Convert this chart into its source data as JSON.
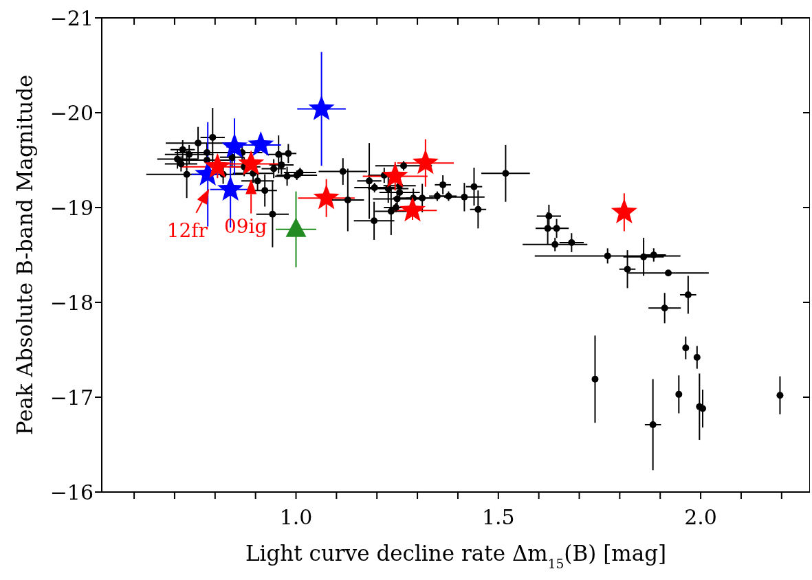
{
  "chart_data": {
    "type": "scatter",
    "xlabel": "Light curve decline rate Δm$_{15}$(B) [mag]",
    "ylabel": "Peak Absolute B-band Magnitude",
    "xlim": [
      0.52,
      2.27
    ],
    "ylim": [
      -16,
      -21
    ],
    "xticks": [
      {
        "value": 0.6,
        "label": null
      },
      {
        "value": 0.7,
        "label": null
      },
      {
        "value": 0.8,
        "label": null
      },
      {
        "value": 0.9,
        "label": null
      },
      {
        "value": 1.0,
        "label": "1.0"
      },
      {
        "value": 1.1,
        "label": null
      },
      {
        "value": 1.2,
        "label": null
      },
      {
        "value": 1.3,
        "label": null
      },
      {
        "value": 1.4,
        "label": null
      },
      {
        "value": 1.5,
        "label": "1.5"
      },
      {
        "value": 1.6,
        "label": null
      },
      {
        "value": 1.7,
        "label": null
      },
      {
        "value": 1.8,
        "label": null
      },
      {
        "value": 1.9,
        "label": null
      },
      {
        "value": 2.0,
        "label": "2.0"
      },
      {
        "value": 2.1,
        "label": null
      },
      {
        "value": 2.2,
        "label": null
      }
    ],
    "yticks": [
      {
        "value": -21,
        "label": "−21"
      },
      {
        "value": -20,
        "label": "−20"
      },
      {
        "value": -19,
        "label": "−19"
      },
      {
        "value": -18,
        "label": "−18"
      },
      {
        "value": -17,
        "label": "−17"
      },
      {
        "value": -16,
        "label": "−16"
      }
    ],
    "series": [
      {
        "color": "#000000",
        "marker": "circle",
        "x": [
          0.794,
          0.758,
          0.72,
          0.736,
          0.707,
          0.716,
          0.78,
          0.78,
          0.73,
          0.842,
          0.867,
          0.872,
          0.894,
          0.905,
          0.923,
          0.942,
          0.957,
          0.981,
          0.945,
          0.964,
          0.978,
          1.002,
          1.01,
          0.82,
          1.116,
          1.128,
          1.181,
          1.194,
          1.193,
          1.218,
          1.228,
          1.256,
          1.256,
          1.25,
          1.235,
          1.247,
          1.266,
          1.29,
          1.312,
          1.349,
          1.363,
          1.377,
          1.416,
          1.44,
          1.45,
          1.518,
          1.625,
          1.622,
          1.644,
          1.64,
          1.681,
          1.77,
          1.819,
          1.859,
          1.884,
          1.92,
          1.969,
          1.911,
          1.739,
          1.882,
          1.946,
          1.963,
          1.991,
          1.997,
          2.005,
          2.196
        ],
        "values": [
          -19.74,
          -19.68,
          -19.61,
          -19.56,
          -19.51,
          -19.46,
          -19.58,
          -19.5,
          -19.35,
          -19.53,
          -19.58,
          -19.43,
          -19.36,
          -19.28,
          -19.18,
          -18.93,
          -19.56,
          -19.57,
          -19.41,
          -19.45,
          -19.33,
          -19.34,
          -19.37,
          -19.35,
          -19.38,
          -19.08,
          -19.28,
          -19.21,
          -18.86,
          -19.34,
          -19.2,
          -19.23,
          -19.16,
          -19.09,
          -18.96,
          -19.0,
          -19.44,
          -19.1,
          -19.1,
          -19.12,
          -19.24,
          -19.12,
          -19.11,
          -19.22,
          -18.98,
          -19.36,
          -18.91,
          -18.78,
          -18.78,
          -18.61,
          -18.63,
          -18.49,
          -18.35,
          -18.48,
          -18.5,
          -18.31,
          -18.08,
          -17.94,
          -17.19,
          -16.71,
          -17.03,
          -17.52,
          -17.42,
          -16.9,
          -16.88,
          -17.02
        ],
        "errors": [
          0.31,
          0.17,
          0.1,
          0.1,
          0.1,
          0.08,
          0.1,
          0.1,
          0.25,
          0.1,
          0.08,
          0.1,
          0.1,
          0.1,
          0.17,
          0.35,
          0.2,
          0.1,
          0.1,
          0.1,
          0.1,
          0.05,
          0.05,
          0.1,
          0.14,
          0.33,
          0.4,
          0.05,
          0.2,
          0.08,
          0.15,
          0.1,
          0.05,
          0.08,
          0.25,
          0.05,
          0.05,
          0.1,
          0.15,
          0.05,
          0.1,
          0.05,
          0.15,
          0.2,
          0.2,
          0.3,
          0.12,
          0.17,
          0.1,
          0.07,
          0.1,
          0.08,
          0.2,
          0.2,
          0.07,
          0.03,
          0.2,
          0.16,
          0.46,
          0.48,
          0.2,
          0.12,
          0.12,
          0.35,
          0.2,
          0.2
        ],
        "xerrors": [
          0.03,
          0.08,
          0.03,
          0.06,
          0.05,
          0.04,
          0.08,
          0.07,
          0.1,
          0.03,
          0.05,
          0.04,
          0.05,
          0.04,
          0.03,
          0.04,
          0.03,
          0.02,
          0.03,
          0.03,
          0.03,
          0.05,
          0.04,
          0.05,
          0.06,
          0.04,
          0.03,
          0.05,
          0.05,
          0.04,
          0.05,
          0.04,
          0.05,
          0.06,
          0.04,
          0.03,
          0.07,
          0.05,
          0.04,
          0.02,
          0.02,
          0.02,
          0.05,
          0.02,
          0.02,
          0.06,
          0.03,
          0.03,
          0.03,
          0.08,
          0.03,
          0.18,
          0.02,
          0.05,
          0.03,
          0.1,
          0.02,
          0.04,
          null,
          0.02,
          null,
          null,
          null,
          null,
          null,
          null
        ]
      },
      {
        "color": "#0000ff",
        "marker": "star",
        "x": [
          0.848,
          0.913,
          0.782,
          0.838,
          1.063
        ],
        "values": [
          -19.64,
          -19.66,
          -19.35,
          -19.19,
          -20.04
        ],
        "errors": [
          0.3,
          0.05,
          0.55,
          0.4,
          0.6
        ],
        "xerrors": [
          0.02,
          0.05,
          0.04,
          0.05,
          0.06
        ]
      },
      {
        "color": "#ff0000",
        "marker": "star",
        "x": [
          0.806,
          0.889,
          1.075,
          1.245,
          1.32,
          1.288,
          1.811
        ],
        "values": [
          -19.43,
          -19.46,
          -19.1,
          -19.33,
          -19.47,
          -18.97,
          -18.95
        ],
        "errors": [
          0.12,
          0.05,
          0.2,
          0.15,
          0.25,
          0.1,
          0.2
        ],
        "xerrors": [
          0.09,
          0.08,
          0.07,
          0.08,
          0.07,
          0.06,
          null
        ]
      },
      {
        "color": "#228b22",
        "marker": "triangle",
        "x": [
          1.0
        ],
        "values": [
          -18.77
        ],
        "errors": [
          0.4
        ],
        "xerrors": [
          0.05
        ]
      }
    ],
    "annotations": [
      {
        "text": "12fr",
        "x": 0.806,
        "y": -19.43
      },
      {
        "text": "09ig",
        "x": 0.889,
        "y": -19.3
      }
    ]
  }
}
